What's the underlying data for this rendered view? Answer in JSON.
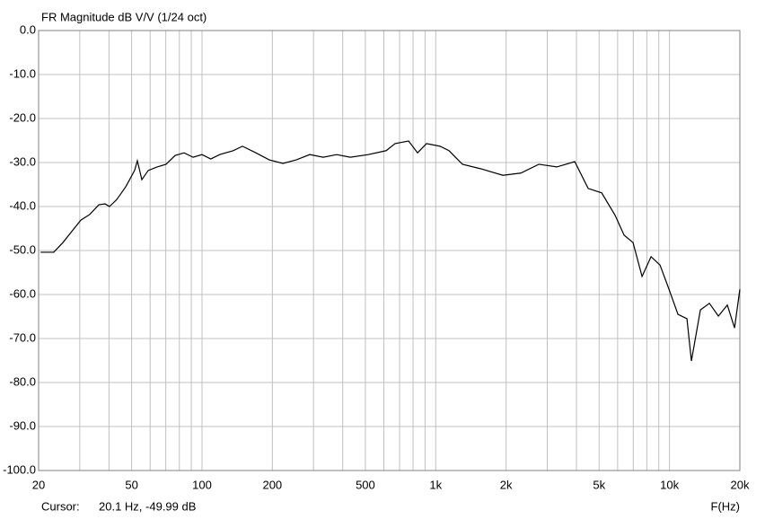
{
  "chart_data": {
    "type": "line",
    "title": "FR Magnitude dB V/V (1/24 oct)",
    "x_label": "F(Hz)",
    "log_x": true,
    "grid": true,
    "cursor": {
      "label": "Cursor:",
      "text": "20.1 Hz, -49.99 dB"
    },
    "xlim": [
      20,
      20000
    ],
    "xticks": [
      20,
      50,
      100,
      200,
      500,
      {
        "value": 1000,
        "label": "1k"
      },
      {
        "value": 2000,
        "label": "2k"
      },
      {
        "value": 5000,
        "label": "5k"
      },
      {
        "value": 10000,
        "label": "10k"
      },
      {
        "value": 20000,
        "label": "20k"
      }
    ],
    "xminorgrid": [
      30,
      40,
      60,
      70,
      80,
      90,
      300,
      400,
      600,
      700,
      800,
      900,
      3000,
      4000,
      6000,
      7000,
      8000,
      9000
    ],
    "ylim": [
      -100,
      0
    ],
    "yticks": [
      {
        "value": 0,
        "label": "0.0"
      },
      {
        "value": -10,
        "label": "-10.0"
      },
      {
        "value": -20,
        "label": "-20.0"
      },
      {
        "value": -30,
        "label": "-30.0"
      },
      {
        "value": -40,
        "label": "-40.0"
      },
      {
        "value": -50,
        "label": "-50.0"
      },
      {
        "value": -60,
        "label": "-60.0"
      },
      {
        "value": -70,
        "label": "-70.0"
      },
      {
        "value": -80,
        "label": "-80.0"
      },
      {
        "value": -90,
        "label": "-90.0"
      },
      {
        "value": -100,
        "label": "-100.0"
      }
    ],
    "x": [
      20.4,
      23.2,
      25.4,
      27.7,
      30.3,
      33.1,
      36.2,
      38.5,
      40.2,
      43.2,
      47.2,
      51.5,
      52.9,
      55.3,
      58.9,
      64.3,
      70.2,
      76.7,
      83.8,
      91.6,
      100,
      109,
      119,
      136,
      149,
      170,
      194,
      222,
      253,
      289,
      330,
      377,
      431,
      514,
      614,
      670,
      765,
      836,
      913,
      1043,
      1139,
      1301,
      1553,
      1937,
      2312,
      2760,
      3295,
      3932,
      4489,
      5127,
      5853,
      6393,
      6984,
      7631,
      8339,
      9109,
      9950,
      10870,
      11875,
      12410,
      13560,
      14816,
      16185,
      17680,
      18980,
      20000
    ],
    "series": [
      {
        "name": "FR Magnitude",
        "color": "#000000",
        "values": [
          -50.4,
          -50.4,
          -48.2,
          -45.7,
          -43.1,
          -41.8,
          -39.6,
          -39.4,
          -40,
          -38.4,
          -35.5,
          -31.8,
          -29.6,
          -33.9,
          -31.8,
          -31,
          -30.4,
          -28.4,
          -27.8,
          -28.8,
          -28.2,
          -29.2,
          -28.2,
          -27.3,
          -26.3,
          -27.8,
          -29.4,
          -30.2,
          -29.4,
          -28.2,
          -28.8,
          -28.2,
          -28.8,
          -28.2,
          -27.3,
          -25.7,
          -25.1,
          -27.8,
          -25.7,
          -26.3,
          -27.3,
          -30.4,
          -31.4,
          -32.9,
          -32.4,
          -30.4,
          -31,
          -29.8,
          -35.9,
          -36.9,
          -42,
          -46.5,
          -48.2,
          -55.9,
          -51.4,
          -53.3,
          -58.8,
          -64.5,
          -65.5,
          -75.1,
          -63.5,
          -62,
          -64.9,
          -62.4,
          -67.6,
          -58.8
        ]
      }
    ]
  }
}
